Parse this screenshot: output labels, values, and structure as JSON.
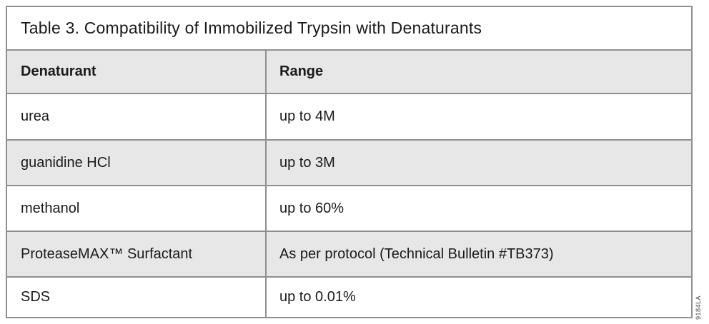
{
  "title": "Table 3. Compatibility of Immobilized Trypsin with Denaturants",
  "table": {
    "columns": [
      "Denaturant",
      "Range"
    ],
    "rows": [
      {
        "denaturant": "urea",
        "range": "up to 4M"
      },
      {
        "denaturant": "guanidine HCl",
        "range": "up to 3M"
      },
      {
        "denaturant": "methanol",
        "range": "up to 60%"
      },
      {
        "denaturant": "ProteaseMAX™ Surfactant",
        "range": "As per protocol (Technical Bulletin #TB373)"
      },
      {
        "denaturant": "SDS",
        "range": "up to 0.01%"
      }
    ]
  },
  "watermark": "9184LA",
  "colors": {
    "row_shade": "#e7e7e7",
    "border": "#8f8f8f",
    "text": "#1a1a1a"
  }
}
